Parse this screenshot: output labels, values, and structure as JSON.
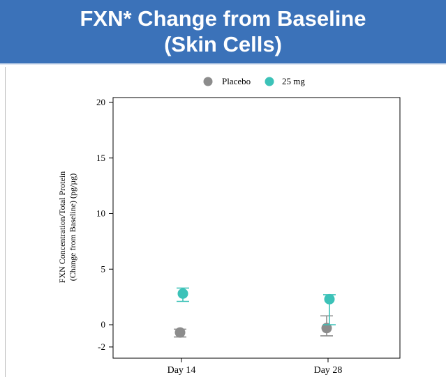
{
  "header": {
    "title_line1": "FXN* Change from Baseline",
    "title_line2": "(Skin Cells)"
  },
  "colors": {
    "banner": "#3b72b9",
    "placebo": "#8c8c8c",
    "dose_25mg": "#3cc2b8"
  },
  "chart_data": {
    "type": "scatter",
    "title": "",
    "ylabel_line1": "FXN Concentration/Total Protein",
    "ylabel_line2": "(Change from Baseline) (pg/µg)",
    "xlabel": "",
    "categories": [
      "Day 14",
      "Day 28"
    ],
    "yticks": [
      -2,
      0,
      5,
      10,
      15,
      20
    ],
    "ylim": [
      -3,
      21
    ],
    "legend_position": "top-center",
    "grid": false,
    "series": [
      {
        "name": "Placebo",
        "color": "#8c8c8c",
        "points": [
          {
            "category": "Day 14",
            "mean": -0.7,
            "lower": -1.1,
            "upper": -0.4
          },
          {
            "category": "Day 28",
            "mean": -0.3,
            "lower": -1.0,
            "upper": 0.8
          }
        ]
      },
      {
        "name": "25 mg",
        "color": "#3cc2b8",
        "points": [
          {
            "category": "Day 14",
            "mean": 2.8,
            "lower": 2.1,
            "upper": 3.3
          },
          {
            "category": "Day 28",
            "mean": 2.3,
            "lower": 0.0,
            "upper": 2.7
          }
        ]
      }
    ]
  }
}
